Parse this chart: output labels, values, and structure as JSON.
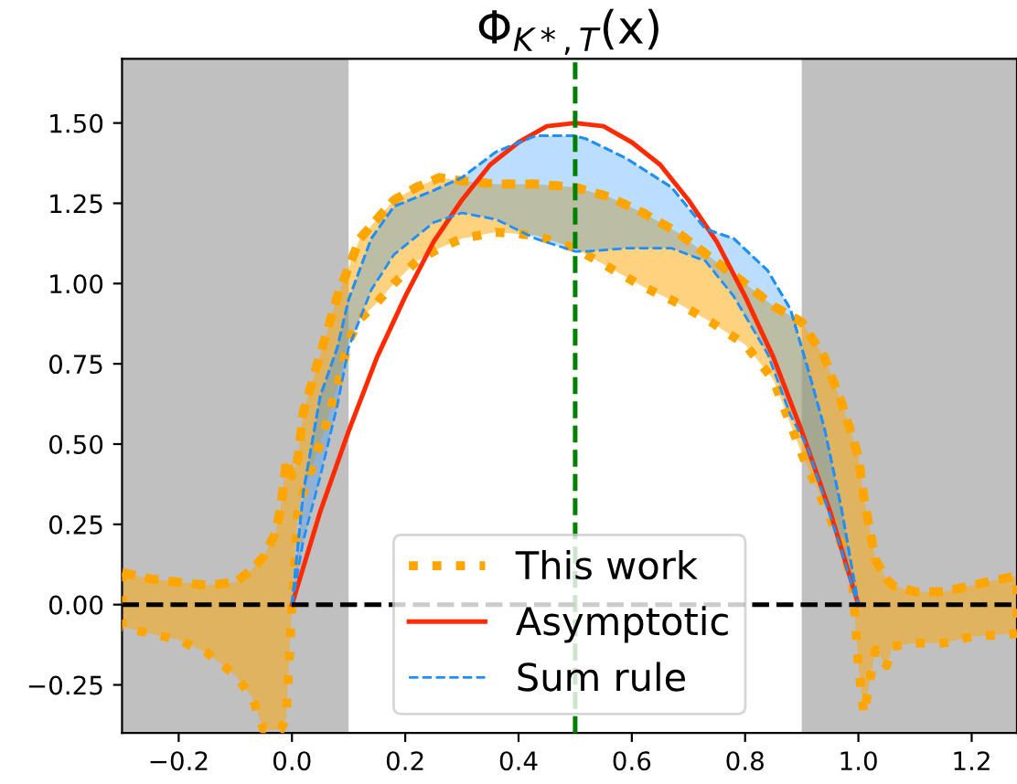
{
  "chart_data": {
    "type": "line",
    "title": "Φ$_{K*,T}$(x)",
    "xlim": [
      -0.3,
      1.28
    ],
    "ylim": [
      -0.4,
      1.7
    ],
    "xticks": [
      {
        "value": -0.2,
        "label": "−0.2"
      },
      {
        "value": 0.0,
        "label": "0.0"
      },
      {
        "value": 0.2,
        "label": "0.2"
      },
      {
        "value": 0.4,
        "label": "0.4"
      },
      {
        "value": 0.6,
        "label": "0.6"
      },
      {
        "value": 0.8,
        "label": "0.8"
      },
      {
        "value": 1.0,
        "label": "1.0"
      },
      {
        "value": 1.2,
        "label": "1.2"
      }
    ],
    "yticks": [
      {
        "value": -0.25,
        "label": "−0.25"
      },
      {
        "value": 0,
        "label": "0.00"
      },
      {
        "value": 0.25,
        "label": "0.25"
      },
      {
        "value": 0.5,
        "label": "0.50"
      },
      {
        "value": 0.75,
        "label": "0.75"
      },
      {
        "value": 1.0,
        "label": "1.00"
      },
      {
        "value": 1.25,
        "label": "1.25"
      },
      {
        "value": 1.5,
        "label": "1.50"
      }
    ],
    "grid": false,
    "legend": "bottom",
    "bands": [
      {
        "axis": "x",
        "from": -0.3,
        "to": 0.1,
        "color": "#c0c0c0"
      },
      {
        "axis": "x",
        "from": 0.9,
        "to": 1.28,
        "color": "#c0c0c0"
      }
    ],
    "ref_lines": [
      {
        "axis": "x",
        "value": 0.5,
        "color": "#008000",
        "line_style": "dashed"
      },
      {
        "axis": "y",
        "value": 0,
        "color": "#000000",
        "line_style": "dashed"
      }
    ],
    "series": [
      {
        "name": "This work",
        "color": "#ffa500",
        "line_style": "dotted",
        "x": [
          -0.3,
          -0.25,
          -0.2,
          -0.15,
          -0.1,
          -0.07,
          -0.05,
          -0.03,
          -0.02,
          -0.01,
          0,
          0.01,
          0.02,
          0.04,
          0.06,
          0.08,
          0.1,
          0.12,
          0.15,
          0.18,
          0.22,
          0.26,
          0.3,
          0.36,
          0.43,
          0.5,
          0.56,
          0.62,
          0.68,
          0.74,
          0.8,
          0.85,
          0.9,
          0.94,
          0.97,
          0.99,
          1.0,
          1.01,
          1.03,
          1.05,
          1.06,
          1.1,
          1.15,
          1.2,
          1.28
        ],
        "values": [
          0.1,
          0.08,
          0.07,
          0.06,
          0.07,
          0.11,
          0.15,
          0.22,
          0.3,
          0.45,
          0.4,
          0.45,
          0.6,
          0.72,
          0.84,
          0.96,
          1.05,
          1.14,
          1.2,
          1.26,
          1.3,
          1.33,
          1.32,
          1.31,
          1.31,
          1.3,
          1.27,
          1.22,
          1.16,
          1.08,
          1.0,
          0.93,
          0.88,
          0.77,
          0.63,
          0.52,
          0.46,
          0.33,
          0.14,
          0.08,
          0.06,
          0.04,
          0.04,
          0.06,
          0.09
        ],
        "upper": [
          0.1,
          0.08,
          0.07,
          0.06,
          0.07,
          0.11,
          0.15,
          0.22,
          0.3,
          0.45,
          0.4,
          0.45,
          0.6,
          0.72,
          0.84,
          0.96,
          1.05,
          1.14,
          1.2,
          1.26,
          1.3,
          1.33,
          1.32,
          1.31,
          1.31,
          1.3,
          1.27,
          1.22,
          1.16,
          1.08,
          1.0,
          0.93,
          0.88,
          0.77,
          0.63,
          0.52,
          0.46,
          0.33,
          0.14,
          0.08,
          0.06,
          0.04,
          0.04,
          0.06,
          0.09
        ],
        "lower": [
          -0.07,
          -0.09,
          -0.11,
          -0.15,
          -0.22,
          -0.29,
          -0.39,
          -0.39,
          -0.39,
          -0.35,
          0.0,
          0.28,
          0.35,
          0.45,
          0.56,
          0.68,
          0.82,
          0.89,
          0.94,
          1.0,
          1.07,
          1.11,
          1.14,
          1.16,
          1.15,
          1.11,
          1.05,
          0.99,
          0.94,
          0.88,
          0.81,
          0.7,
          0.47,
          0.31,
          0.19,
          0.06,
          -0.19,
          -0.34,
          -0.14,
          -0.19,
          -0.13,
          -0.12,
          -0.12,
          -0.1,
          -0.09
        ]
      },
      {
        "name": "Asymptotic",
        "color": "#ff2a00",
        "line_style": "solid",
        "x": [
          0,
          0.05,
          0.1,
          0.15,
          0.2,
          0.25,
          0.3,
          0.35,
          0.4,
          0.45,
          0.5,
          0.55,
          0.6,
          0.65,
          0.7,
          0.75,
          0.8,
          0.85,
          0.9,
          0.95,
          1.0
        ],
        "values": [
          0,
          0.29,
          0.54,
          0.77,
          0.96,
          1.13,
          1.26,
          1.37,
          1.44,
          1.49,
          1.5,
          1.49,
          1.44,
          1.37,
          1.26,
          1.13,
          0.96,
          0.77,
          0.54,
          0.29,
          0
        ]
      },
      {
        "name": "Sum rule",
        "color": "#1e8fff",
        "line_style": "dashed",
        "x": [
          0,
          0.02,
          0.05,
          0.08,
          0.1,
          0.14,
          0.18,
          0.25,
          0.3,
          0.36,
          0.43,
          0.5,
          0.52,
          0.59,
          0.67,
          0.73,
          0.78,
          0.84,
          0.88,
          0.91,
          0.94,
          0.97,
          0.99,
          1.0
        ],
        "values": [
          0,
          0.35,
          0.65,
          0.8,
          0.95,
          1.14,
          1.24,
          1.29,
          1.33,
          1.41,
          1.46,
          1.46,
          1.45,
          1.39,
          1.3,
          1.17,
          1.14,
          1.04,
          0.92,
          0.74,
          0.55,
          0.3,
          0.1,
          0
        ],
        "upper": [
          0,
          0.35,
          0.65,
          0.8,
          0.95,
          1.14,
          1.24,
          1.29,
          1.33,
          1.41,
          1.46,
          1.46,
          1.45,
          1.39,
          1.3,
          1.17,
          1.14,
          1.04,
          0.92,
          0.74,
          0.55,
          0.3,
          0.1,
          0
        ],
        "lower": [
          0,
          0.2,
          0.4,
          0.62,
          0.8,
          0.98,
          1.09,
          1.19,
          1.22,
          1.2,
          1.14,
          1.1,
          1.1,
          1.11,
          1.11,
          1.07,
          0.96,
          0.78,
          0.59,
          0.49,
          0.33,
          0.17,
          0.05,
          0
        ]
      }
    ]
  }
}
